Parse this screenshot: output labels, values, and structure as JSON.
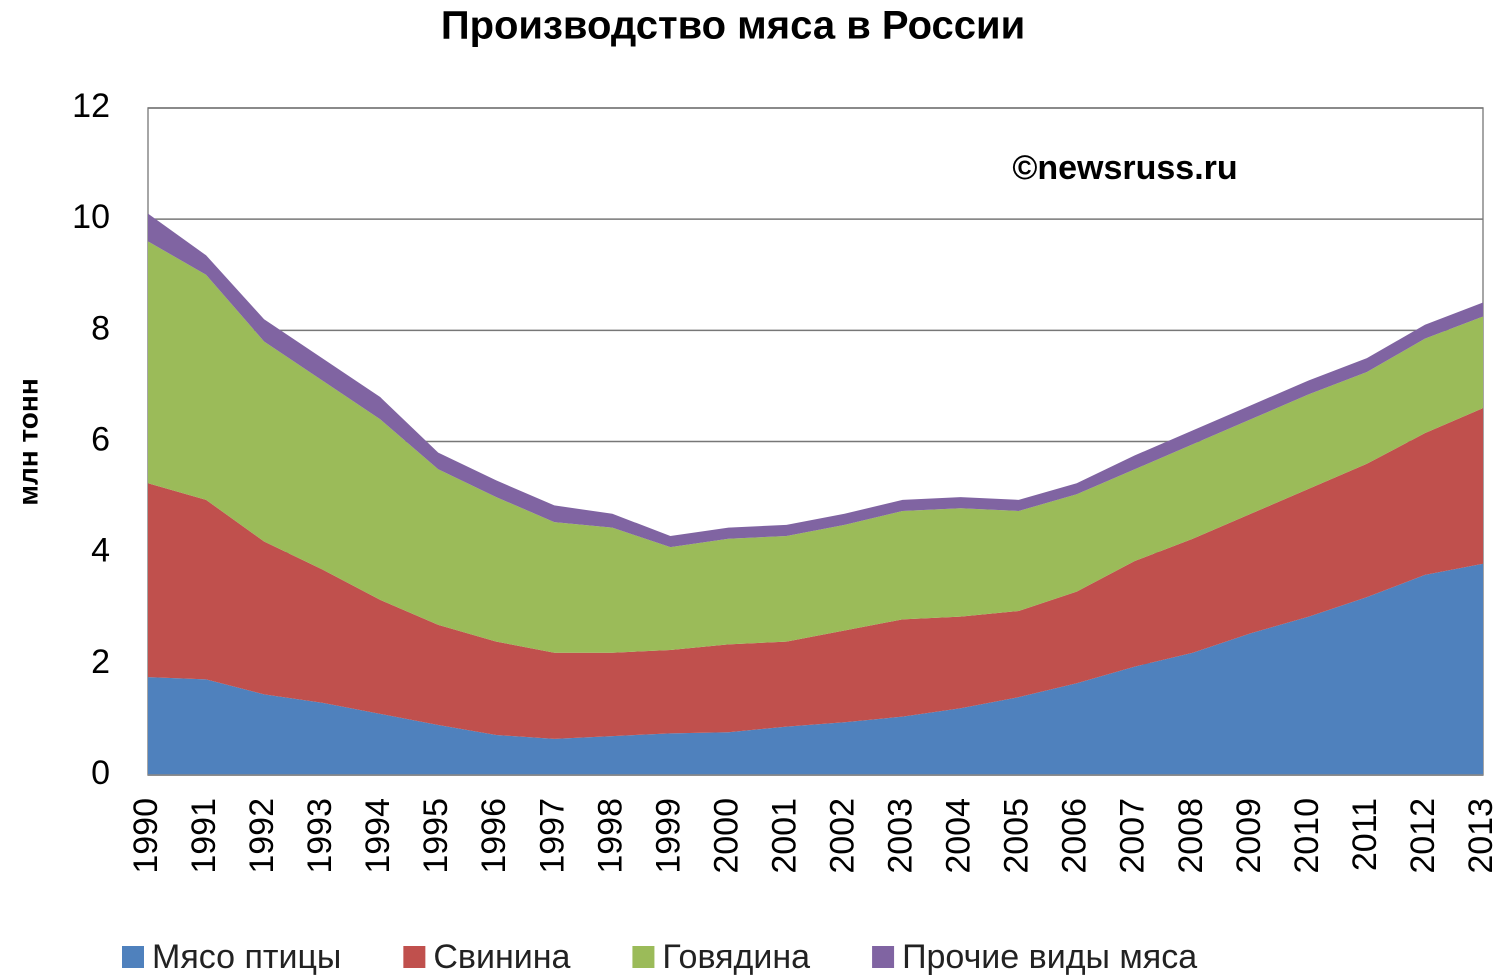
{
  "chart_data": {
    "type": "stacked_area",
    "title": "Производство мяса в России",
    "ylabel": "млн тонн",
    "annotation": "©newsruss.ru",
    "categories": [
      "1990",
      "1991",
      "1992",
      "1993",
      "1994",
      "1995",
      "1996",
      "1997",
      "1998",
      "1999",
      "2000",
      "2001",
      "2002",
      "2003",
      "2004",
      "2005",
      "2006",
      "2007",
      "2008",
      "2009",
      "2010",
      "2011",
      "2012",
      "2013"
    ],
    "series": [
      {
        "name": "Мясо птицы",
        "color": "#4f81bd",
        "values": [
          1.76,
          1.72,
          1.45,
          1.3,
          1.1,
          0.9,
          0.72,
          0.65,
          0.7,
          0.75,
          0.77,
          0.87,
          0.95,
          1.05,
          1.2,
          1.4,
          1.65,
          1.95,
          2.2,
          2.55,
          2.85,
          3.2,
          3.6,
          3.8
        ]
      },
      {
        "name": "Свинина",
        "color": "#c0504d",
        "values": [
          3.49,
          3.23,
          2.75,
          2.4,
          2.05,
          1.8,
          1.68,
          1.55,
          1.5,
          1.5,
          1.58,
          1.53,
          1.65,
          1.75,
          1.65,
          1.55,
          1.65,
          1.9,
          2.05,
          2.15,
          2.3,
          2.4,
          2.55,
          2.8
        ]
      },
      {
        "name": "Говядина",
        "color": "#9bbb59",
        "values": [
          4.35,
          4.05,
          3.6,
          3.4,
          3.25,
          2.8,
          2.6,
          2.35,
          2.25,
          1.85,
          1.9,
          1.9,
          1.9,
          1.95,
          1.95,
          1.8,
          1.75,
          1.65,
          1.7,
          1.7,
          1.7,
          1.65,
          1.7,
          1.65
        ]
      },
      {
        "name": "Прочие виды мяса",
        "color": "#8064a2",
        "values": [
          0.5,
          0.35,
          0.4,
          0.4,
          0.4,
          0.3,
          0.3,
          0.3,
          0.25,
          0.2,
          0.2,
          0.2,
          0.2,
          0.2,
          0.2,
          0.2,
          0.2,
          0.25,
          0.25,
          0.25,
          0.25,
          0.25,
          0.25,
          0.25
        ]
      }
    ],
    "ylim": [
      0,
      12
    ],
    "yticks": [
      0,
      2,
      4,
      6,
      8,
      10,
      12
    ],
    "grid": true
  }
}
